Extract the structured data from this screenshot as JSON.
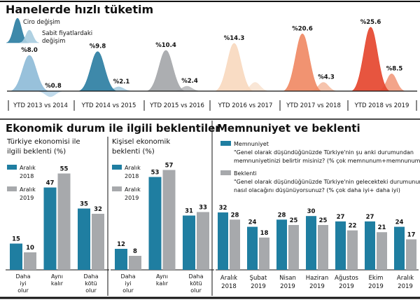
{
  "colors": {
    "teal": "#1f7ea1",
    "gray": "#a7a9ac",
    "text": "#111111"
  },
  "chart_data": [
    {
      "type": "area",
      "title": "Hanelerde hızlı tüketim",
      "legend": [
        "Ciro değişim",
        "Sabit fiyatlardaki değişim"
      ],
      "categories": [
        "YTD 2013 vs 2014",
        "YTD 2014 vs 2015",
        "YTD 2015 vs 2016",
        "YTD 2016 vs 2017",
        "YTD 2017 vs 2018",
        "YTD 2018 vs 2019"
      ],
      "series": [
        {
          "name": "Ciro değişim",
          "values": [
            8.0,
            9.8,
            10.4,
            14.3,
            20.6,
            25.6
          ],
          "labels": [
            "%8.0",
            "%9.8",
            "%10.4",
            "%14.3",
            "%20.6",
            "%25.6"
          ],
          "colors": [
            "#8fbcd8",
            "#2e7fa3",
            "#a5a7aa",
            "#f8d9bf",
            "#f08a65",
            "#e5472f"
          ]
        },
        {
          "name": "Sabit fiyatlardaki değişim",
          "values": [
            0.8,
            2.1,
            2.4,
            4.3,
            4.3,
            8.5
          ],
          "labels": [
            "%0.8",
            "%2.1",
            "%2.4",
            "",
            "%4.3",
            "%8.5"
          ],
          "colors": [
            "#bcd8ea",
            "#a9cde0",
            "#bcbdbf",
            "#f8e4d3",
            "#f5bfa6",
            "#f29c80"
          ]
        }
      ]
    },
    {
      "type": "bar",
      "section_title": "Ekonomik durum ile ilgili beklentiler",
      "title": [
        "Türkiye ekonomisi ile",
        "ilgili beklenti (%)"
      ],
      "categories": [
        [
          "Daha",
          "iyi",
          "olur"
        ],
        [
          "Aynı",
          "kalır"
        ],
        [
          "Daha",
          "kötü",
          "olur"
        ]
      ],
      "series": [
        {
          "name": [
            "Aralık",
            "2018"
          ],
          "values": [
            15,
            47,
            35
          ]
        },
        {
          "name": [
            "Aralık",
            "2019"
          ],
          "values": [
            10,
            55,
            32
          ]
        }
      ]
    },
    {
      "type": "bar",
      "title": [
        "Kişisel ekonomik",
        "beklenti (%)"
      ],
      "categories": [
        [
          "Daha",
          "iyi",
          "olur"
        ],
        [
          "Aynı",
          "kalır"
        ],
        [
          "Daha",
          "kötü",
          "olur"
        ]
      ],
      "series": [
        {
          "name": [
            "Aralık",
            "2018"
          ],
          "values": [
            12,
            53,
            31
          ]
        },
        {
          "name": [
            "Aralık",
            "2019"
          ],
          "values": [
            8,
            57,
            33
          ]
        }
      ]
    },
    {
      "type": "bar",
      "title": "Memnuniyet ve beklenti",
      "categories": [
        [
          "Aralık",
          "2018"
        ],
        [
          "Şubat",
          "2019"
        ],
        [
          "Nisan",
          "2019"
        ],
        [
          "Haziran",
          "2019"
        ],
        [
          "Ağustos",
          "2019"
        ],
        [
          "Ekim",
          "2019"
        ],
        [
          "Aralık",
          "2019"
        ]
      ],
      "series": [
        {
          "name": "Memnuniyet",
          "description": [
            "\"Genel olarak düşündüğünüzde Türkiye'nin şu anki durumundan",
            "memnuniyetinizi belirtir misiniz? (% çok memnunum+memnunum)"
          ],
          "values": [
            32,
            24,
            28,
            30,
            27,
            27,
            24
          ]
        },
        {
          "name": "Beklenti",
          "description": [
            "\"Genel olarak düşündüğünüzde Türkiye'nin gelecekteki durumunun",
            "nasıl olacağını düşünüyorsunuz? (% çok daha iyi+ daha iyi)"
          ],
          "values": [
            28,
            18,
            25,
            25,
            22,
            21,
            17
          ]
        }
      ]
    }
  ]
}
